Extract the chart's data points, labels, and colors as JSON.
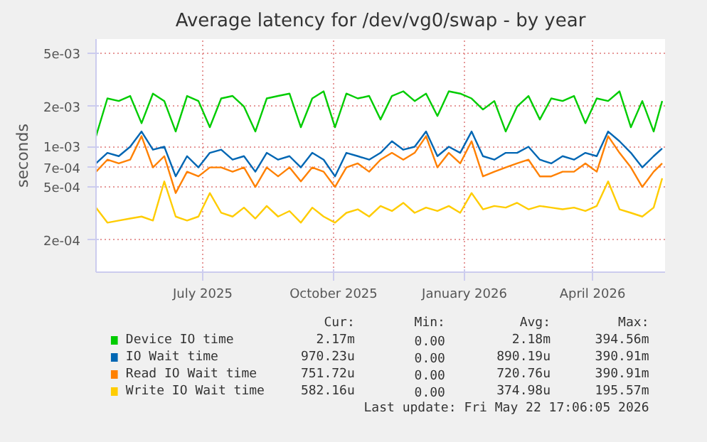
{
  "chart_data": {
    "type": "line",
    "title": "Average latency for /dev/vg0/swap - by year",
    "ylabel": "seconds",
    "log": true,
    "grid": true,
    "legend": "bottom",
    "line_style": "solid",
    "marker": "none",
    "xlim": [
      "2025-04-17",
      "2026-05-22"
    ],
    "xticks": [
      {
        "value": "2025-07-01",
        "label": "July 2025"
      },
      {
        "value": "2025-10-01",
        "label": "October 2025"
      },
      {
        "value": "2026-01-01",
        "label": "January 2026"
      },
      {
        "value": "2026-04-01",
        "label": "April 2026"
      }
    ],
    "ylim": [
      0.000115,
      0.0064
    ],
    "yticks": [
      {
        "value": 0.005,
        "label": "5e-03"
      },
      {
        "value": 0.002,
        "label": "2e-03"
      },
      {
        "value": 0.001,
        "label": "1e-03"
      },
      {
        "value": 0.0007,
        "label": "7e-04"
      },
      {
        "value": 0.0005,
        "label": "5e-04"
      },
      {
        "value": 0.0002,
        "label": "2e-04"
      }
    ],
    "x": [
      "2025-04-17",
      "2025-04-25",
      "2025-05-03",
      "2025-05-11",
      "2025-05-19",
      "2025-05-27",
      "2025-06-04",
      "2025-06-12",
      "2025-06-20",
      "2025-06-28",
      "2025-07-06",
      "2025-07-14",
      "2025-07-22",
      "2025-07-30",
      "2025-08-07",
      "2025-08-15",
      "2025-08-23",
      "2025-08-31",
      "2025-09-08",
      "2025-09-16",
      "2025-09-24",
      "2025-10-02",
      "2025-10-10",
      "2025-10-18",
      "2025-10-26",
      "2025-11-03",
      "2025-11-11",
      "2025-11-19",
      "2025-11-27",
      "2025-12-05",
      "2025-12-13",
      "2025-12-21",
      "2025-12-29",
      "2026-01-06",
      "2026-01-14",
      "2026-01-22",
      "2026-01-30",
      "2026-02-07",
      "2026-02-15",
      "2026-02-23",
      "2026-03-03",
      "2026-03-11",
      "2026-03-19",
      "2026-03-27",
      "2026-04-04",
      "2026-04-12",
      "2026-04-20",
      "2026-04-28",
      "2026-05-06",
      "2026-05-14",
      "2026-05-20"
    ],
    "series": [
      {
        "name": "Device IO time",
        "color": "#00cc00",
        "values": [
          0.0012,
          0.0023,
          0.0022,
          0.0024,
          0.0015,
          0.0025,
          0.0022,
          0.0013,
          0.0024,
          0.0022,
          0.0014,
          0.0023,
          0.0024,
          0.002,
          0.0013,
          0.0023,
          0.0024,
          0.0025,
          0.0014,
          0.0023,
          0.0026,
          0.0014,
          0.0025,
          0.0023,
          0.0024,
          0.0016,
          0.0024,
          0.0026,
          0.0022,
          0.0025,
          0.0017,
          0.0026,
          0.0025,
          0.0023,
          0.0019,
          0.0022,
          0.0013,
          0.002,
          0.0024,
          0.0016,
          0.0023,
          0.0022,
          0.0024,
          0.0015,
          0.0023,
          0.0022,
          0.0026,
          0.0014,
          0.0022,
          0.0013,
          0.0022
        ]
      },
      {
        "name": "IO Wait time",
        "color": "#0066b3",
        "values": [
          0.00075,
          0.0009,
          0.00085,
          0.001,
          0.0013,
          0.00095,
          0.001,
          0.0006,
          0.00085,
          0.0007,
          0.0009,
          0.00095,
          0.0008,
          0.00085,
          0.00065,
          0.0009,
          0.0008,
          0.00085,
          0.0007,
          0.0009,
          0.0008,
          0.0006,
          0.0009,
          0.00085,
          0.0008,
          0.0009,
          0.0011,
          0.00095,
          0.001,
          0.0013,
          0.00085,
          0.001,
          0.0009,
          0.0013,
          0.00085,
          0.0008,
          0.0009,
          0.0009,
          0.001,
          0.0008,
          0.00075,
          0.00085,
          0.0008,
          0.0009,
          0.00085,
          0.0013,
          0.0011,
          0.0009,
          0.0007,
          0.00085,
          0.00097
        ]
      },
      {
        "name": "Read IO Wait time",
        "color": "#ff8000",
        "values": [
          0.00065,
          0.0008,
          0.00075,
          0.0008,
          0.0012,
          0.0007,
          0.00085,
          0.00045,
          0.00065,
          0.0006,
          0.0007,
          0.0007,
          0.00065,
          0.0007,
          0.0005,
          0.0007,
          0.0006,
          0.0007,
          0.00055,
          0.0007,
          0.00065,
          0.0005,
          0.0007,
          0.00075,
          0.00065,
          0.0008,
          0.0009,
          0.0008,
          0.0009,
          0.0012,
          0.0007,
          0.0009,
          0.00075,
          0.0011,
          0.0006,
          0.00065,
          0.0007,
          0.00075,
          0.0008,
          0.0006,
          0.0006,
          0.00065,
          0.00065,
          0.00075,
          0.00065,
          0.0012,
          0.0009,
          0.0007,
          0.0005,
          0.00065,
          0.00075
        ]
      },
      {
        "name": "Write IO Wait time",
        "color": "#ffcc00",
        "values": [
          0.00035,
          0.00027,
          0.00028,
          0.00029,
          0.0003,
          0.00028,
          0.00055,
          0.0003,
          0.00028,
          0.0003,
          0.00045,
          0.00032,
          0.0003,
          0.00035,
          0.00029,
          0.00036,
          0.0003,
          0.00033,
          0.00027,
          0.00035,
          0.0003,
          0.00027,
          0.00032,
          0.00034,
          0.0003,
          0.00036,
          0.00033,
          0.00038,
          0.00032,
          0.00035,
          0.00033,
          0.00036,
          0.00032,
          0.00045,
          0.00034,
          0.00036,
          0.00035,
          0.00038,
          0.00034,
          0.00036,
          0.00035,
          0.00034,
          0.00035,
          0.00033,
          0.00036,
          0.00055,
          0.00034,
          0.00032,
          0.0003,
          0.00035,
          0.00058
        ]
      }
    ],
    "annotations": [
      "Cur:",
      "Min:",
      "Avg:",
      "Max:",
      "2.17m",
      "0.00",
      "2.18m",
      "394.56m",
      "970.23u",
      "0.00",
      "890.19u",
      "390.91m",
      "751.72u",
      "0.00",
      "720.76u",
      "390.91m",
      "582.16u",
      "0.00",
      "374.98u",
      "195.57m",
      "Last update: Fri May 22 17:06:05 2026"
    ]
  }
}
